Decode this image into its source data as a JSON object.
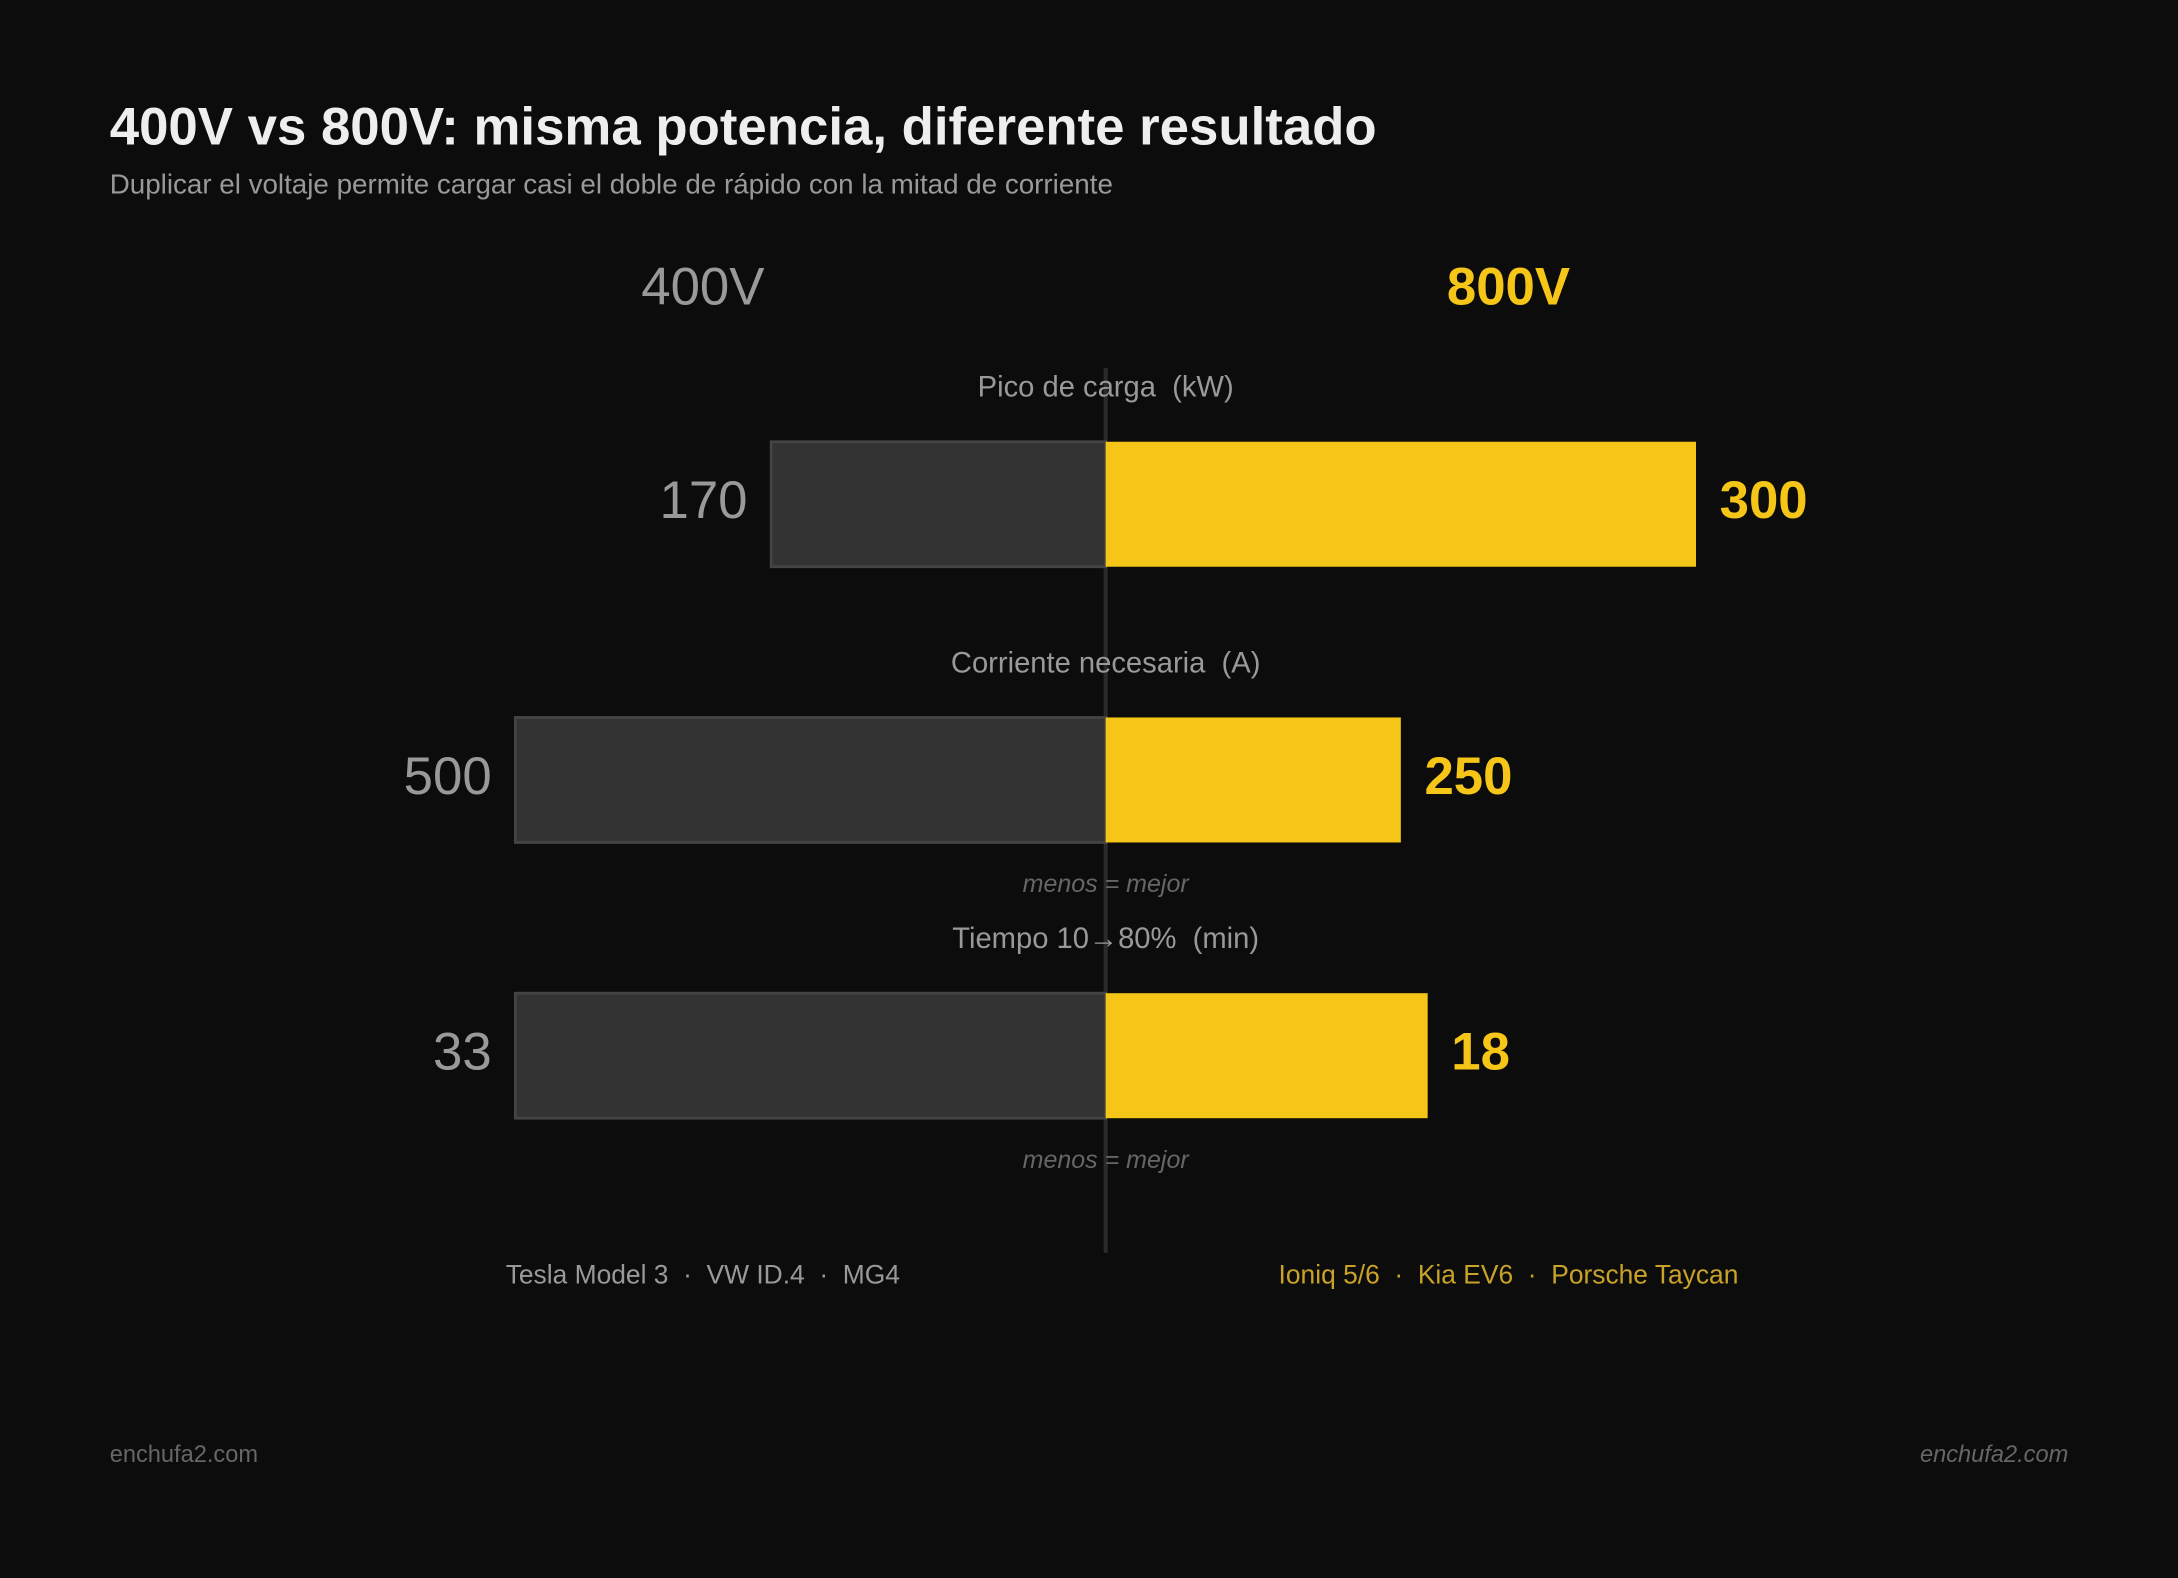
{
  "chart_data": {
    "type": "butterfly",
    "title": "400V vs 800V: misma potencia, diferente resultado",
    "subtitle": "Duplicar el voltaje permite cargar casi el doble de rápido con la mitad de corriente",
    "categories": [
      "Pico de carga  (kW)",
      "Corriente necesaria  (A)",
      "Tiempo 10→80%  (min)"
    ],
    "notes": [
      null,
      "menos = mejor",
      "menos = mejor"
    ],
    "series": [
      {
        "name": "400V",
        "color": "#333333",
        "values": [
          170,
          500,
          33
        ],
        "models": "Tesla Model 3  ·  VW ID.4  ·  MG4"
      },
      {
        "name": "800V",
        "color": "#f5c518",
        "values": [
          300,
          250,
          18
        ],
        "models": "Ioniq 5/6  ·  Kia EV6  ·  Porsche Taycan"
      }
    ],
    "source_left": "enchufa2.com",
    "source_right": "enchufa2.com"
  }
}
